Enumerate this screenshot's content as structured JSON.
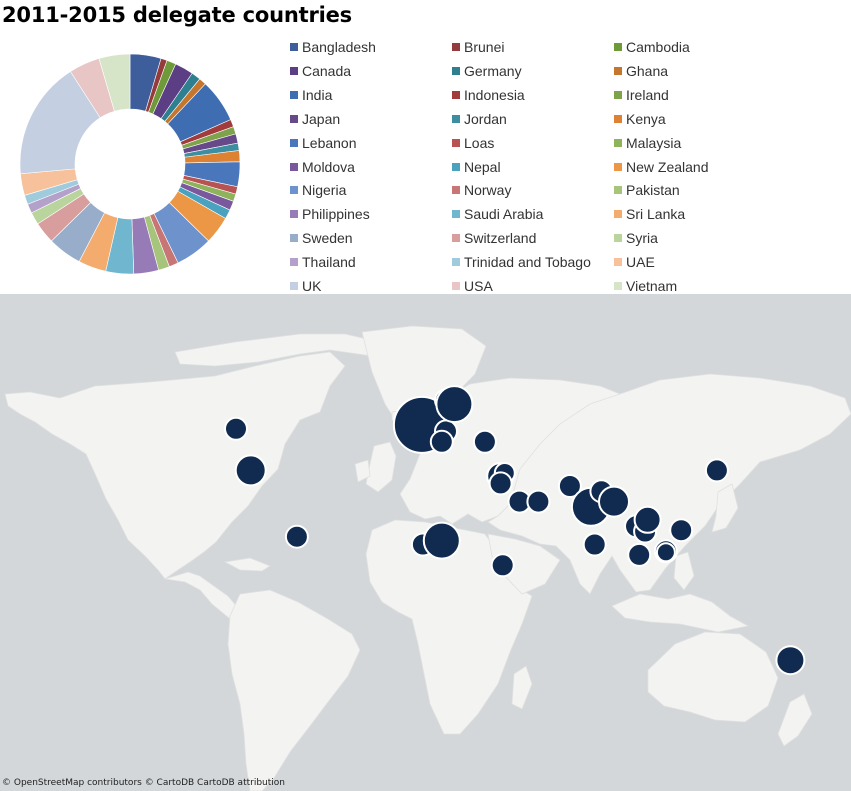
{
  "title": "2011-2015 delegate countries",
  "chart_data": {
    "type": "pie",
    "donut": true,
    "legend_position": "right",
    "categories": [
      "Bangladesh",
      "Brunei",
      "Cambodia",
      "Canada",
      "Germany",
      "Ghana",
      "India",
      "Indonesia",
      "Ireland",
      "Japan",
      "Jordan",
      "Kenya",
      "Lebanon",
      "Loas",
      "Malaysia",
      "Moldova",
      "Nepal",
      "New Zealand",
      "Nigeria",
      "Norway",
      "Pakistan",
      "Philippines",
      "Saudi Arabia",
      "Sri Lanka",
      "Sweden",
      "Switzerland",
      "Syria",
      "Thailand",
      "Trinidad and Tobago",
      "UAE",
      "UK",
      "USA",
      "Vietnam"
    ],
    "values": [
      5.0,
      1.0,
      1.5,
      3.0,
      1.5,
      1.2,
      7.0,
      1.2,
      1.2,
      1.5,
      1.2,
      1.8,
      4.0,
      1.2,
      1.2,
      1.5,
      1.5,
      4.5,
      6.0,
      1.5,
      1.8,
      4.0,
      4.5,
      4.5,
      5.5,
      3.5,
      2.0,
      1.5,
      1.5,
      3.5,
      19.0,
      5.0,
      5.0
    ],
    "colors": [
      "#3e5e9b",
      "#963b3b",
      "#6f9a3a",
      "#5b3e83",
      "#2e7f8f",
      "#c4762f",
      "#3e6db2",
      "#a23c3c",
      "#7fa34a",
      "#674888",
      "#3e8ea1",
      "#dd8232",
      "#4a76bb",
      "#b85353",
      "#8fb35a",
      "#7a589d",
      "#4aa2be",
      "#ec9746",
      "#6e93cc",
      "#c77575",
      "#a6c47a",
      "#977bb7",
      "#70b6cf",
      "#f3ab6e",
      "#97adc9",
      "#d89d9d",
      "#b9d49c",
      "#b4a1ca",
      "#9fcbdd",
      "#f6c19b",
      "#c5cfe2",
      "#e8c6c6",
      "#d6e4c8"
    ]
  },
  "map": {
    "marker_color": "#112a4f",
    "markers": [
      {
        "country": "Canada",
        "lon": -90,
        "lat": 52,
        "r": 11
      },
      {
        "country": "USA",
        "lon": -83,
        "lat": 36,
        "r": 15
      },
      {
        "country": "Trinidad and Tobago",
        "lon": -61,
        "lat": 10.5,
        "r": 11
      },
      {
        "country": "Ireland",
        "lon": -8,
        "lat": 53,
        "r": 12
      },
      {
        "country": "UK",
        "lon": -1.5,
        "lat": 53.5,
        "r": 28
      },
      {
        "country": "Germany",
        "lon": 10,
        "lat": 51,
        "r": 11
      },
      {
        "country": "Switzerland",
        "lon": 8,
        "lat": 47,
        "r": 11
      },
      {
        "country": "Norway",
        "lon": 10,
        "lat": 63,
        "r": 11
      },
      {
        "country": "Sweden",
        "lon": 14,
        "lat": 61.5,
        "r": 18
      },
      {
        "country": "Moldova",
        "lon": 28.5,
        "lat": 47,
        "r": 11
      },
      {
        "country": "Lebanon",
        "lon": 35.8,
        "lat": 33.8,
        "r": 13
      },
      {
        "country": "Syria",
        "lon": 38,
        "lat": 35,
        "r": 10
      },
      {
        "country": "Jordan",
        "lon": 36,
        "lat": 31,
        "r": 11
      },
      {
        "country": "Saudi Arabia",
        "lon": 45,
        "lat": 24,
        "r": 11
      },
      {
        "country": "UAE",
        "lon": 54,
        "lat": 24,
        "r": 11
      },
      {
        "country": "Ghana",
        "lon": -1,
        "lat": 7.5,
        "r": 11
      },
      {
        "country": "Nigeria",
        "lon": 8,
        "lat": 9,
        "r": 18
      },
      {
        "country": "Kenya",
        "lon": 37,
        "lat": -0.5,
        "r": 11
      },
      {
        "country": "Pakistan",
        "lon": 69,
        "lat": 30,
        "r": 11
      },
      {
        "country": "India",
        "lon": 79,
        "lat": 22,
        "r": 19
      },
      {
        "country": "Nepal",
        "lon": 84,
        "lat": 28,
        "r": 11
      },
      {
        "country": "Bangladesh",
        "lon": 90,
        "lat": 24,
        "r": 15
      },
      {
        "country": "Sri Lanka",
        "lon": 80.8,
        "lat": 7.5,
        "r": 11
      },
      {
        "country": "Thailand",
        "lon": 100.5,
        "lat": 14.5,
        "r": 11
      },
      {
        "country": "Cambodia",
        "lon": 104.8,
        "lat": 12.5,
        "r": 11
      },
      {
        "country": "Vietnam",
        "lon": 106,
        "lat": 17,
        "r": 13
      },
      {
        "country": "Philippines",
        "lon": 122,
        "lat": 13,
        "r": 11
      },
      {
        "country": "Malaysia",
        "lon": 102,
        "lat": 3.5,
        "r": 11
      },
      {
        "country": "Brunei",
        "lon": 114.7,
        "lat": 4.9,
        "r": 11
      },
      {
        "country": "Indonesia",
        "lon": 114.7,
        "lat": 4.5,
        "r": 9
      },
      {
        "country": "Japan",
        "lon": 139,
        "lat": 36,
        "r": 11
      },
      {
        "country": "New Zealand",
        "lon": 174,
        "lat": -37,
        "r": 14
      }
    ]
  },
  "attribution": "© OpenStreetMap contributors © CartoDB CartoDB attribution"
}
